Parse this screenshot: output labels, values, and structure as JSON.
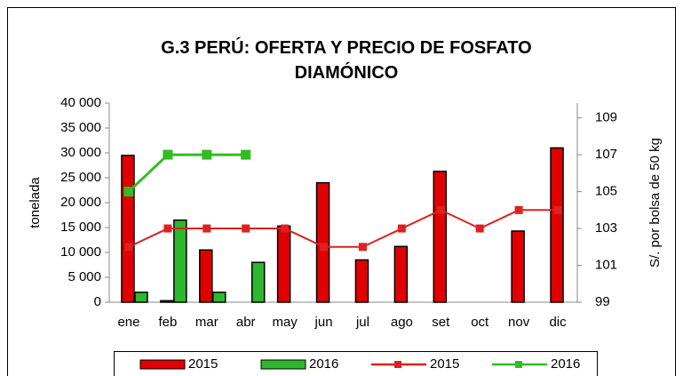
{
  "chart_data": {
    "type": "bar_line",
    "title": "G.3  PERÚ: OFERTA Y PRECIO DE FOSFATO DIAMÓNICO",
    "ylabel": "tonelada",
    "y2label": "S/.  por bolsa de 50 kg",
    "categories": [
      "ene",
      "feb",
      "mar",
      "abr",
      "may",
      "jun",
      "jul",
      "ago",
      "set",
      "oct",
      "nov",
      "dic"
    ],
    "series": [
      {
        "name": "2015",
        "kind": "bar",
        "color": "#e00000",
        "values": [
          29500,
          300,
          10500,
          null,
          15300,
          24000,
          8500,
          11200,
          26300,
          null,
          14300,
          31000
        ]
      },
      {
        "name": "2016",
        "kind": "bar",
        "color": "#2db82d",
        "values": [
          2000,
          16500,
          2000,
          8000,
          null,
          null,
          null,
          null,
          null,
          null,
          null,
          null
        ]
      },
      {
        "name": "2015",
        "kind": "line",
        "axis": "y2",
        "color": "#e02020",
        "values": [
          102,
          103,
          103,
          103,
          103,
          102,
          102,
          103,
          104,
          103,
          104,
          104
        ]
      },
      {
        "name": "2016",
        "kind": "line",
        "axis": "y2",
        "color": "#33bb22",
        "values": [
          105,
          107,
          107,
          107,
          null,
          null,
          null,
          null,
          null,
          null,
          null,
          null
        ]
      }
    ],
    "ylim": [
      0,
      40000
    ],
    "yticks": [
      0,
      {
        "value": 5000,
        "label": "5 000"
      },
      {
        "value": 10000,
        "label": "10 000"
      },
      {
        "value": 15000,
        "label": "15 000"
      },
      {
        "value": 20000,
        "label": "20 000"
      },
      {
        "value": 25000,
        "label": "25 000"
      },
      {
        "value": 30000,
        "label": "30 000"
      },
      {
        "value": 35000,
        "label": "35 000"
      },
      {
        "value": 40000,
        "label": "40 000"
      }
    ],
    "y2lim": [
      99,
      109.8
    ],
    "y2ticks": [
      99,
      101,
      103,
      105,
      107,
      109
    ],
    "legend": "bottom"
  }
}
